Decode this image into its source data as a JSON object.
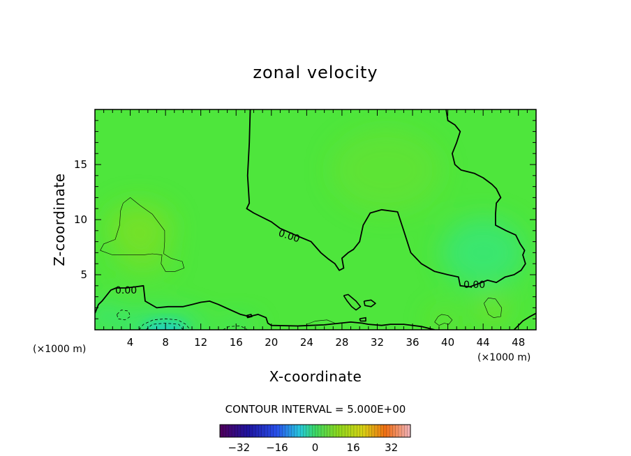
{
  "chart_data": {
    "type": "heatmap",
    "title": "zonal velocity",
    "xlabel": "X-coordinate",
    "ylabel": "Z-coordinate",
    "x_unit_label": "(×1000 m)",
    "y_unit_label": "(×1000 m)",
    "x_range": [
      0,
      50
    ],
    "y_range": [
      0,
      20
    ],
    "x_ticks": [
      4,
      8,
      12,
      16,
      20,
      24,
      28,
      32,
      36,
      40,
      44,
      48
    ],
    "y_ticks": [
      5,
      10,
      15
    ],
    "contour_interval_text": "CONTOUR INTERVAL = 5.000E+00",
    "contour_labels": [
      "0.00",
      "0.00",
      "0.00"
    ],
    "colorbar": {
      "range": [
        -40,
        40
      ],
      "ticks": [
        -32,
        -16,
        0,
        16,
        32
      ],
      "tick_labels": [
        "−32",
        "−16",
        "0",
        "16",
        "32"
      ]
    },
    "field_colors": {
      "base": "#4ee63c",
      "positive": "#7ae025",
      "negative": "#2ee68a",
      "negative_strong": "#1fcfc4"
    },
    "zero_contour_lines": [
      [
        [
          17.6,
          20
        ],
        [
          17.5,
          17
        ],
        [
          17.3,
          14
        ],
        [
          17.5,
          11.5
        ],
        [
          17.2,
          11.0
        ],
        [
          18.0,
          10.6
        ],
        [
          20.0,
          9.8
        ],
        [
          21.0,
          9.2
        ],
        [
          23.0,
          8.5
        ],
        [
          24.5,
          8.0
        ],
        [
          25.6,
          7.0
        ],
        [
          26.5,
          6.4
        ],
        [
          27.2,
          6.0
        ],
        [
          27.7,
          5.4
        ],
        [
          28.2,
          5.6
        ],
        [
          28.0,
          6.5
        ],
        [
          28.7,
          7.0
        ],
        [
          29.3,
          7.3
        ],
        [
          30.0,
          8.0
        ],
        [
          30.4,
          9.5
        ],
        [
          31.2,
          10.6
        ],
        [
          32.5,
          10.9
        ],
        [
          34.3,
          10.7
        ],
        [
          35.0,
          9.0
        ],
        [
          35.8,
          7.0
        ],
        [
          37.0,
          6.0
        ],
        [
          38.5,
          5.3
        ],
        [
          40.0,
          5.0
        ],
        [
          41.2,
          4.8
        ],
        [
          41.4,
          4.0
        ],
        [
          42.5,
          3.9
        ],
        [
          43.5,
          4.2
        ],
        [
          44.5,
          4.5
        ],
        [
          45.5,
          4.3
        ],
        [
          46.5,
          4.8
        ],
        [
          47.5,
          5.0
        ],
        [
          48.3,
          5.4
        ],
        [
          48.8,
          6.0
        ],
        [
          48.5,
          6.8
        ],
        [
          48.7,
          7.2
        ],
        [
          48.2,
          7.8
        ],
        [
          47.7,
          8.6
        ],
        [
          46.6,
          9.0
        ],
        [
          45.4,
          9.5
        ],
        [
          45.4,
          10.5
        ],
        [
          45.5,
          11.5
        ],
        [
          46.0,
          12.0
        ],
        [
          45.5,
          12.8
        ],
        [
          45.0,
          13.2
        ],
        [
          44.0,
          13.8
        ],
        [
          43.0,
          14.2
        ],
        [
          41.5,
          14.5
        ],
        [
          40.8,
          15.0
        ],
        [
          40.5,
          16.0
        ],
        [
          41.0,
          17.0
        ],
        [
          41.4,
          18.0
        ],
        [
          40.8,
          18.6
        ],
        [
          40.0,
          19.0
        ],
        [
          39.8,
          20
        ]
      ],
      [
        [
          0.0,
          1.5
        ],
        [
          0.4,
          2.3
        ],
        [
          0.8,
          2.6
        ],
        [
          1.2,
          3.0
        ],
        [
          1.8,
          3.6
        ],
        [
          2.4,
          3.8
        ],
        [
          3.5,
          3.8
        ],
        [
          4.6,
          3.9
        ],
        [
          5.5,
          4.0
        ],
        [
          5.7,
          2.6
        ],
        [
          7.0,
          2.0
        ],
        [
          8.3,
          2.1
        ],
        [
          9.4,
          2.1
        ],
        [
          10.0,
          2.1
        ],
        [
          11.0,
          2.3
        ],
        [
          12.0,
          2.5
        ],
        [
          13.0,
          2.6
        ],
        [
          14.0,
          2.3
        ],
        [
          15.1,
          1.9
        ],
        [
          16.5,
          1.4
        ],
        [
          17.5,
          1.2
        ],
        [
          18.5,
          1.4
        ],
        [
          19.4,
          1.1
        ],
        [
          19.6,
          0.6
        ],
        [
          20.0,
          0.4
        ],
        [
          23.0,
          0.35
        ],
        [
          26.0,
          0.45
        ],
        [
          29.0,
          0.7
        ],
        [
          30.3,
          0.6
        ],
        [
          31.0,
          0.5
        ],
        [
          32.5,
          0.4
        ],
        [
          33.5,
          0.5
        ],
        [
          35.0,
          0.5
        ],
        [
          37.0,
          0.3
        ],
        [
          38.5,
          0.0
        ]
      ],
      [
        [
          47.5,
          0.0
        ],
        [
          48.5,
          0.8
        ],
        [
          49.3,
          1.2
        ],
        [
          50.0,
          1.5
        ]
      ]
    ],
    "small_zero_contours": [
      [
        [
          28.2,
          3.1
        ],
        [
          28.7,
          3.2
        ],
        [
          29.6,
          2.6
        ],
        [
          30.1,
          2.1
        ],
        [
          29.6,
          1.8
        ],
        [
          29.1,
          2.1
        ],
        [
          28.6,
          2.6
        ],
        [
          28.2,
          3.1
        ]
      ],
      [
        [
          30.5,
          2.6
        ],
        [
          31.3,
          2.7
        ],
        [
          31.8,
          2.4
        ],
        [
          31.3,
          2.1
        ],
        [
          30.6,
          2.2
        ],
        [
          30.5,
          2.6
        ]
      ],
      [
        [
          30.0,
          1.0
        ],
        [
          30.7,
          1.1
        ],
        [
          30.7,
          0.8
        ],
        [
          30.1,
          0.8
        ],
        [
          30.0,
          1.0
        ]
      ],
      [
        [
          17.2,
          1.3
        ],
        [
          17.7,
          1.4
        ],
        [
          17.8,
          1.2
        ],
        [
          17.3,
          1.1
        ],
        [
          17.2,
          1.3
        ]
      ]
    ],
    "positive_contour_lines": [
      [
        [
          0.6,
          7.2
        ],
        [
          1.0,
          7.8
        ],
        [
          2.3,
          8.2
        ],
        [
          2.8,
          9.5
        ],
        [
          2.9,
          10.8
        ],
        [
          3.2,
          11.5
        ],
        [
          4.0,
          12.0
        ],
        [
          5.1,
          11.3
        ],
        [
          6.5,
          10.5
        ],
        [
          7.9,
          9.0
        ],
        [
          7.9,
          8.0
        ],
        [
          7.8,
          6.9
        ],
        [
          8.6,
          6.5
        ],
        [
          9.9,
          6.2
        ],
        [
          10.1,
          5.6
        ],
        [
          9.1,
          5.3
        ],
        [
          8.0,
          5.3
        ],
        [
          7.5,
          6.0
        ],
        [
          7.6,
          6.8
        ],
        [
          6.5,
          6.9
        ],
        [
          5.5,
          6.8
        ],
        [
          3.5,
          6.8
        ],
        [
          2.0,
          6.8
        ],
        [
          0.6,
          7.2
        ]
      ],
      [
        [
          38.5,
          0.7
        ],
        [
          38.9,
          1.2
        ],
        [
          39.3,
          1.4
        ],
        [
          40.0,
          1.3
        ],
        [
          40.5,
          0.9
        ],
        [
          40.1,
          0.5
        ],
        [
          39.6,
          0.6
        ],
        [
          39.0,
          0.4
        ],
        [
          38.5,
          0.7
        ]
      ],
      [
        [
          44.1,
          2.4
        ],
        [
          44.6,
          2.9
        ],
        [
          45.4,
          2.8
        ],
        [
          46.1,
          2.0
        ],
        [
          46.0,
          1.2
        ],
        [
          45.2,
          1.1
        ],
        [
          44.6,
          1.4
        ],
        [
          44.1,
          2.4
        ]
      ],
      [
        [
          24.0,
          0.5
        ],
        [
          25.0,
          0.8
        ],
        [
          26.3,
          0.9
        ],
        [
          27.2,
          0.6
        ]
      ]
    ],
    "negative_contour_lines": [
      [
        [
          5.0,
          0.0
        ],
        [
          5.5,
          0.5
        ],
        [
          6.6,
          0.9
        ],
        [
          8.0,
          1.0
        ],
        [
          9.4,
          0.9
        ],
        [
          10.3,
          0.5
        ],
        [
          10.8,
          0.0
        ]
      ],
      [
        [
          5.8,
          0.0
        ],
        [
          6.5,
          0.5
        ],
        [
          8.0,
          0.6
        ],
        [
          9.5,
          0.5
        ],
        [
          10.0,
          0.0
        ]
      ],
      [
        [
          2.5,
          1.4
        ],
        [
          3.0,
          1.8
        ],
        [
          3.8,
          1.7
        ],
        [
          4.0,
          1.2
        ],
        [
          3.4,
          0.9
        ],
        [
          2.6,
          1.0
        ],
        [
          2.5,
          1.4
        ]
      ],
      [
        [
          14.5,
          0.0
        ],
        [
          15.2,
          0.3
        ],
        [
          16.5,
          0.35
        ],
        [
          17.3,
          0.0
        ]
      ]
    ]
  }
}
